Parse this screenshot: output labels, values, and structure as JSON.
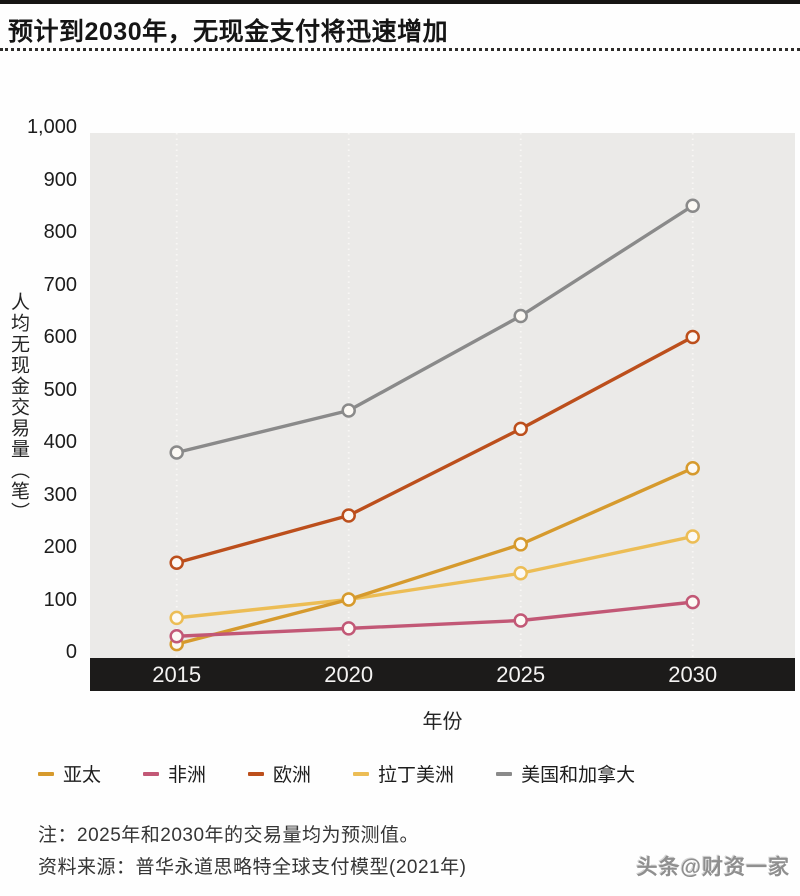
{
  "header": {
    "title": "预计到2030年，无现金支付将迅速增加"
  },
  "chart_data": {
    "type": "line",
    "title": "预计到2030年，无现金支付将迅速增加",
    "categories": [
      "2015",
      "2020",
      "2025",
      "2030"
    ],
    "series": [
      {
        "name": "亚太",
        "color": "#d69a2d",
        "values": [
          15,
          100,
          205,
          350
        ]
      },
      {
        "name": "非洲",
        "color": "#c25876",
        "values": [
          30,
          45,
          60,
          95
        ]
      },
      {
        "name": "欧洲",
        "color": "#bc4f1c",
        "values": [
          170,
          260,
          425,
          600
        ]
      },
      {
        "name": "拉丁美洲",
        "color": "#ecbd55",
        "values": [
          65,
          100,
          150,
          220
        ]
      },
      {
        "name": "美国和加拿大",
        "color": "#8a8a8a",
        "values": [
          380,
          460,
          640,
          850
        ]
      }
    ],
    "xlabel": "年份",
    "ylabel": "人均无现金交易量（笔）",
    "ylim": [
      0,
      1000
    ],
    "ytick_step": 100,
    "yticks": [
      "1,000",
      "900",
      "800",
      "700",
      "600",
      "500",
      "400",
      "300",
      "200",
      "100",
      "0"
    ],
    "grid": "vertical dotted white gridlines at each year",
    "legend_position": "bottom",
    "plot_background": "#ebeae8",
    "axis_band_color": "#1c1b1a",
    "marker_fill": "#fcf9f4"
  },
  "notes": {
    "note": "注：2025年和2030年的交易量均为预测值。",
    "source": "资料来源：普华永道思略特全球支付模型(2021年)"
  },
  "watermark": "头条@财资一家"
}
